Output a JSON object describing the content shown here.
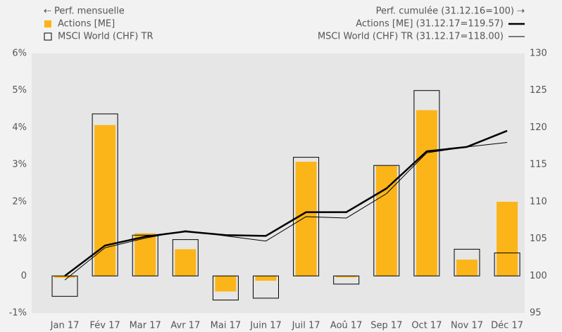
{
  "chart_data": {
    "type": "bar",
    "legend_left_title": "⇠ Perf. mensuelle",
    "legend_right_title": "Perf. cumulée (31.12.16=100) ⇢",
    "categories": [
      "Jan 17",
      "Fév 17",
      "Mar 17",
      "Avr 17",
      "Mai 17",
      "Juin 17",
      "Juil 17",
      "Aoû 17",
      "Sep 17",
      "Oct 17",
      "Nov 17",
      "Déc 17"
    ],
    "series": [
      {
        "name": "Actions [ME]",
        "type": "bar",
        "style": "filled",
        "color": "#fbb519",
        "axis": "y",
        "values": [
          -0.05,
          4.07,
          1.15,
          0.72,
          -0.42,
          -0.13,
          3.08,
          -0.04,
          2.97,
          4.47,
          0.44,
          2.0
        ]
      },
      {
        "name": "MSCI World (CHF) TR",
        "type": "bar",
        "style": "outline",
        "color": "#000000",
        "axis": "y",
        "values": [
          -0.55,
          4.37,
          1.1,
          0.98,
          -0.65,
          -0.6,
          3.2,
          -0.22,
          2.98,
          5.0,
          0.72,
          0.62
        ]
      },
      {
        "name": "Actions [ME] (31.12.17=119.57)",
        "type": "line",
        "color": "#000000",
        "line_width": 2.5,
        "axis": "y2",
        "values": [
          100.0,
          104.1,
          105.3,
          106.0,
          105.5,
          105.4,
          108.6,
          108.6,
          111.8,
          116.8,
          117.4,
          119.57
        ]
      },
      {
        "name": "MSCI World (CHF) TR (31.12.17=118.00)",
        "type": "line",
        "color": "#000000",
        "line_width": 1,
        "axis": "y2",
        "values": [
          99.45,
          103.8,
          105.1,
          106.1,
          105.4,
          104.7,
          108.0,
          107.8,
          111.1,
          116.6,
          117.4,
          118.0
        ]
      }
    ],
    "ylim": [
      -1,
      6
    ],
    "yticks": [
      {
        "value": -1,
        "label": "-1%"
      },
      0,
      {
        "value": 1,
        "label": "1%"
      },
      {
        "value": 2,
        "label": "2%"
      },
      {
        "value": 3,
        "label": "3%"
      },
      {
        "value": 4,
        "label": "4%"
      },
      {
        "value": 5,
        "label": "5%"
      },
      {
        "value": 6,
        "label": "6%"
      }
    ],
    "y2lim": [
      95,
      130
    ],
    "y2ticks": [
      95,
      100,
      105,
      110,
      115,
      120,
      125,
      130
    ]
  }
}
